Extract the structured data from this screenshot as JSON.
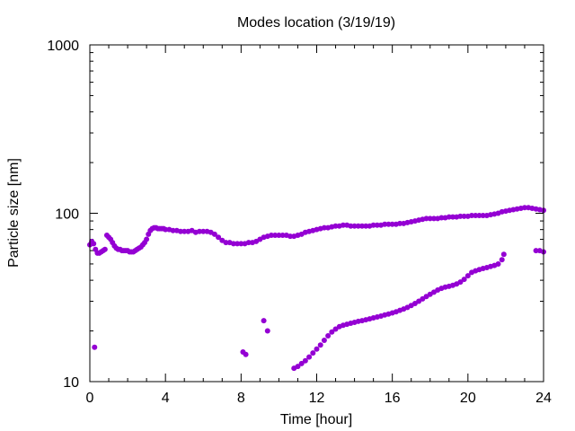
{
  "chart_data": {
    "type": "scatter",
    "title": "Modes location (3/19/19)",
    "xlabel": "Time [hour]",
    "ylabel": "Particle size [nm]",
    "xlim": [
      0,
      24
    ],
    "ylim": [
      10,
      1000
    ],
    "yscale": "log",
    "grid": false,
    "legend": "none",
    "marker_color": "#9400d3",
    "x_ticks": [
      0,
      4,
      8,
      12,
      16,
      20,
      24
    ],
    "x_tick_labels": [
      "0",
      "4",
      "8",
      "12",
      "16",
      "20",
      "24"
    ],
    "y_ticks": [
      10,
      100,
      1000
    ],
    "y_tick_labels": [
      "10",
      "100",
      "1000"
    ],
    "series": [
      {
        "points": [
          [
            0.0,
            65
          ],
          [
            0.1,
            68
          ],
          [
            0.2,
            66
          ],
          [
            0.3,
            61
          ],
          [
            0.4,
            58
          ],
          [
            0.5,
            58
          ],
          [
            0.6,
            59
          ],
          [
            0.7,
            60
          ],
          [
            0.8,
            61
          ],
          [
            0.9,
            74
          ],
          [
            1.0,
            72
          ],
          [
            1.1,
            70
          ],
          [
            1.2,
            67
          ],
          [
            1.3,
            64
          ],
          [
            1.4,
            62
          ],
          [
            1.5,
            61
          ],
          [
            1.6,
            61
          ],
          [
            1.7,
            60
          ],
          [
            1.8,
            60
          ],
          [
            1.9,
            60
          ],
          [
            2.0,
            60
          ],
          [
            2.1,
            59
          ],
          [
            2.2,
            59
          ],
          [
            2.3,
            59
          ],
          [
            2.4,
            60
          ],
          [
            2.5,
            61
          ],
          [
            2.6,
            62
          ],
          [
            2.7,
            63
          ],
          [
            2.8,
            65
          ],
          [
            2.9,
            67
          ],
          [
            3.0,
            70
          ],
          [
            3.1,
            75
          ],
          [
            3.2,
            79
          ],
          [
            3.3,
            81
          ],
          [
            3.4,
            82
          ],
          [
            3.5,
            82
          ],
          [
            3.6,
            81
          ],
          [
            3.7,
            81
          ],
          [
            3.8,
            81
          ],
          [
            3.9,
            81
          ],
          [
            4.0,
            80
          ],
          [
            4.2,
            80
          ],
          [
            4.4,
            79
          ],
          [
            4.6,
            79
          ],
          [
            4.8,
            78
          ],
          [
            5.0,
            78
          ],
          [
            5.2,
            78
          ],
          [
            5.4,
            79
          ],
          [
            5.6,
            77
          ],
          [
            5.8,
            78
          ],
          [
            6.0,
            78
          ],
          [
            6.2,
            78
          ],
          [
            6.4,
            77
          ],
          [
            6.6,
            75
          ],
          [
            6.8,
            72
          ],
          [
            7.0,
            69
          ],
          [
            7.2,
            67
          ],
          [
            7.4,
            67
          ],
          [
            7.6,
            66
          ],
          [
            7.8,
            66
          ],
          [
            8.0,
            66
          ],
          [
            8.2,
            66
          ],
          [
            8.4,
            67
          ],
          [
            8.6,
            67
          ],
          [
            8.8,
            68
          ],
          [
            9.0,
            70
          ],
          [
            9.2,
            72
          ],
          [
            9.4,
            73
          ],
          [
            9.6,
            74
          ],
          [
            9.8,
            74
          ],
          [
            10.0,
            74
          ],
          [
            10.2,
            74
          ],
          [
            10.4,
            74
          ],
          [
            10.6,
            73
          ],
          [
            10.8,
            73
          ],
          [
            11.0,
            74
          ],
          [
            11.2,
            75
          ],
          [
            11.4,
            77
          ],
          [
            11.6,
            78
          ],
          [
            11.8,
            79
          ],
          [
            12.0,
            80
          ],
          [
            12.2,
            81
          ],
          [
            12.4,
            82
          ],
          [
            12.6,
            82
          ],
          [
            12.8,
            83
          ],
          [
            13.0,
            84
          ],
          [
            13.2,
            84
          ],
          [
            13.4,
            85
          ],
          [
            13.6,
            85
          ],
          [
            13.8,
            84
          ],
          [
            14.0,
            84
          ],
          [
            14.2,
            84
          ],
          [
            14.4,
            84
          ],
          [
            14.6,
            84
          ],
          [
            14.8,
            84
          ],
          [
            15.0,
            85
          ],
          [
            15.2,
            85
          ],
          [
            15.4,
            85
          ],
          [
            15.6,
            86
          ],
          [
            15.8,
            86
          ],
          [
            16.0,
            86
          ],
          [
            16.2,
            86
          ],
          [
            16.4,
            87
          ],
          [
            16.6,
            87
          ],
          [
            16.8,
            88
          ],
          [
            17.0,
            89
          ],
          [
            17.2,
            90
          ],
          [
            17.4,
            91
          ],
          [
            17.6,
            92
          ],
          [
            17.8,
            93
          ],
          [
            18.0,
            93
          ],
          [
            18.2,
            93
          ],
          [
            18.4,
            93
          ],
          [
            18.6,
            94
          ],
          [
            18.8,
            94
          ],
          [
            19.0,
            95
          ],
          [
            19.2,
            95
          ],
          [
            19.4,
            95
          ],
          [
            19.6,
            96
          ],
          [
            19.8,
            96
          ],
          [
            20.0,
            96
          ],
          [
            20.2,
            97
          ],
          [
            20.4,
            97
          ],
          [
            20.6,
            97
          ],
          [
            20.8,
            97
          ],
          [
            21.0,
            97
          ],
          [
            21.2,
            98
          ],
          [
            21.4,
            99
          ],
          [
            21.6,
            100
          ],
          [
            21.8,
            102
          ],
          [
            22.0,
            103
          ],
          [
            22.2,
            104
          ],
          [
            22.4,
            105
          ],
          [
            22.6,
            106
          ],
          [
            22.8,
            107
          ],
          [
            23.0,
            108
          ],
          [
            23.2,
            108
          ],
          [
            23.4,
            107
          ],
          [
            23.6,
            106
          ],
          [
            23.8,
            105
          ],
          [
            24.0,
            104
          ],
          [
            0.25,
            16
          ],
          [
            8.1,
            15
          ],
          [
            8.25,
            14.5
          ],
          [
            9.2,
            23
          ],
          [
            9.4,
            20
          ],
          [
            10.8,
            12
          ],
          [
            11.0,
            12.3
          ],
          [
            11.2,
            12.8
          ],
          [
            11.4,
            13.3
          ],
          [
            11.6,
            14
          ],
          [
            11.8,
            14.8
          ],
          [
            12.0,
            15.6
          ],
          [
            12.2,
            16.5
          ],
          [
            12.4,
            17.6
          ],
          [
            12.6,
            18.7
          ],
          [
            12.8,
            19.7
          ],
          [
            13.0,
            20.5
          ],
          [
            13.2,
            21.2
          ],
          [
            13.4,
            21.6
          ],
          [
            13.6,
            21.9
          ],
          [
            13.8,
            22.2
          ],
          [
            14.0,
            22.5
          ],
          [
            14.2,
            22.8
          ],
          [
            14.4,
            23.0
          ],
          [
            14.6,
            23.3
          ],
          [
            14.8,
            23.6
          ],
          [
            15.0,
            23.9
          ],
          [
            15.2,
            24.2
          ],
          [
            15.4,
            24.5
          ],
          [
            15.6,
            24.9
          ],
          [
            15.8,
            25.2
          ],
          [
            16.0,
            25.6
          ],
          [
            16.2,
            26.0
          ],
          [
            16.4,
            26.5
          ],
          [
            16.6,
            27.0
          ],
          [
            16.8,
            27.6
          ],
          [
            17.0,
            28.3
          ],
          [
            17.2,
            29.1
          ],
          [
            17.4,
            30.0
          ],
          [
            17.6,
            31.0
          ],
          [
            17.8,
            32.0
          ],
          [
            18.0,
            33.0
          ],
          [
            18.2,
            34.0
          ],
          [
            18.4,
            35.0
          ],
          [
            18.6,
            35.8
          ],
          [
            18.8,
            36.4
          ],
          [
            19.0,
            36.8
          ],
          [
            19.2,
            37.3
          ],
          [
            19.4,
            38.0
          ],
          [
            19.6,
            39.0
          ],
          [
            19.8,
            40.5
          ],
          [
            20.0,
            42.5
          ],
          [
            20.2,
            44.5
          ],
          [
            20.4,
            45.5
          ],
          [
            20.6,
            46.3
          ],
          [
            20.8,
            47.0
          ],
          [
            21.0,
            47.6
          ],
          [
            21.2,
            48.3
          ],
          [
            21.4,
            49.0
          ],
          [
            21.6,
            50.0
          ],
          [
            21.8,
            53.0
          ],
          [
            21.9,
            57.0
          ],
          [
            23.6,
            60
          ],
          [
            23.8,
            60
          ],
          [
            24.0,
            59
          ]
        ]
      }
    ]
  }
}
